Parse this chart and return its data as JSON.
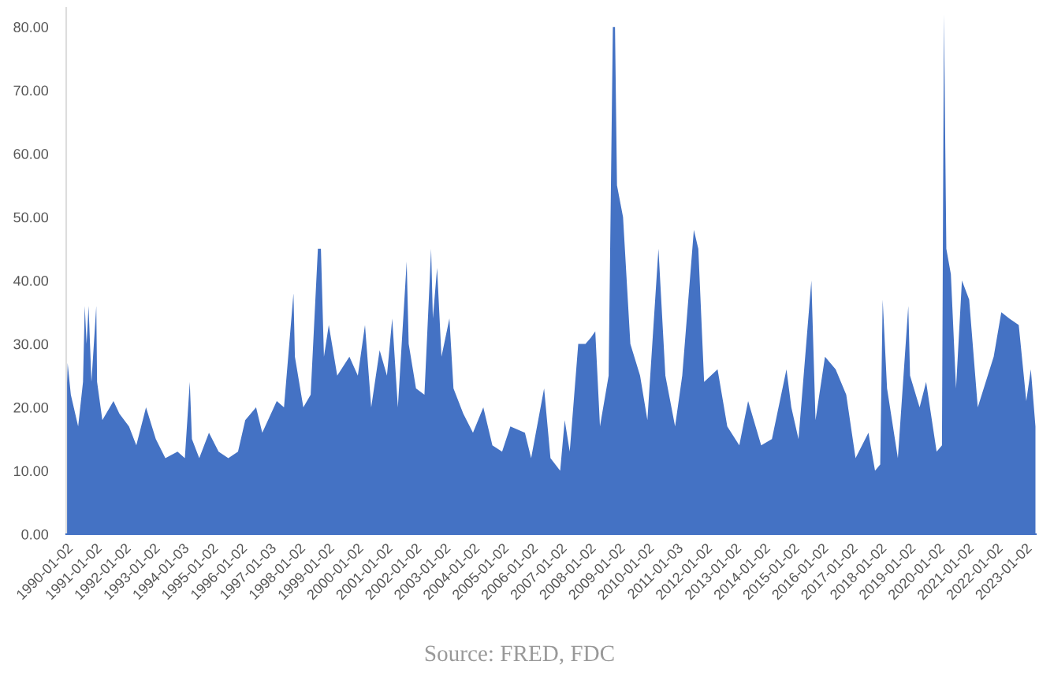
{
  "chart_data": {
    "type": "area",
    "annotations": [
      "Source: FRED, FDC"
    ],
    "x": [
      "1990-01-02",
      "1990-01-20",
      "1990-03-01",
      "1990-06-01",
      "1990-08-01",
      "1990-08-23",
      "1990-09-15",
      "1990-10-10",
      "1990-11-15",
      "1991-01-15",
      "1991-01-25",
      "1991-04-01",
      "1991-08-19",
      "1991-11-01",
      "1992-03-01",
      "1992-06-01",
      "1992-10-01",
      "1993-02-01",
      "1993-06-01",
      "1993-11-01",
      "1994-02-01",
      "1994-04-04",
      "1994-05-01",
      "1994-08-01",
      "1994-12-01",
      "1995-04-01",
      "1995-08-01",
      "1995-12-01",
      "1996-03-01",
      "1996-07-15",
      "1996-10-01",
      "1997-04-01",
      "1997-07-01",
      "1997-10-28",
      "1997-11-15",
      "1998-03-01",
      "1998-06-01",
      "1998-08-31",
      "1998-10-08",
      "1998-11-15",
      "1999-01-15",
      "1999-05-01",
      "1999-10-01",
      "2000-01-15",
      "2000-04-14",
      "2000-07-01",
      "2000-10-15",
      "2001-01-15",
      "2001-03-22",
      "2001-06-01",
      "2001-09-20",
      "2001-10-15",
      "2002-01-15",
      "2002-05-01",
      "2002-07-24",
      "2002-08-15",
      "2002-10-07",
      "2002-12-01",
      "2003-03-11",
      "2003-05-01",
      "2003-09-01",
      "2004-01-01",
      "2004-05-10",
      "2004-09-01",
      "2005-01-01",
      "2005-04-15",
      "2005-10-15",
      "2006-01-01",
      "2006-06-13",
      "2006-09-01",
      "2007-01-01",
      "2007-02-27",
      "2007-05-01",
      "2007-08-16",
      "2007-11-15",
      "2008-01-22",
      "2008-03-17",
      "2008-05-15",
      "2008-09-01",
      "2008-10-24",
      "2008-11-20",
      "2008-12-15",
      "2009-03-01",
      "2009-06-01",
      "2009-10-01",
      "2010-01-01",
      "2010-05-20",
      "2010-08-15",
      "2010-12-15",
      "2011-03-15",
      "2011-08-08",
      "2011-10-03",
      "2011-12-15",
      "2012-06-01",
      "2012-10-01",
      "2013-03-01",
      "2013-06-20",
      "2013-12-01",
      "2014-04-15",
      "2014-10-15",
      "2014-12-15",
      "2015-03-15",
      "2015-08-24",
      "2015-10-15",
      "2016-02-11",
      "2016-06-24",
      "2016-11-04",
      "2017-03-01",
      "2017-08-10",
      "2017-11-01",
      "2018-01-05",
      "2018-02-05",
      "2018-04-01",
      "2018-08-15",
      "2018-12-24",
      "2019-01-15",
      "2019-05-15",
      "2019-08-05",
      "2019-12-15",
      "2020-02-20",
      "2020-03-16",
      "2020-04-15",
      "2020-06-11",
      "2020-08-15",
      "2020-10-28",
      "2021-01-27",
      "2021-05-15",
      "2021-12-01",
      "2022-03-07",
      "2022-06-15",
      "2022-10-12",
      "2023-01-15",
      "2023-03-13",
      "2023-05-10"
    ],
    "values": [
      20,
      27,
      22,
      17,
      24,
      36,
      30,
      36,
      24,
      36,
      24,
      18,
      21,
      19,
      17,
      14,
      20,
      15,
      12,
      13,
      12,
      24,
      15,
      12,
      16,
      13,
      12,
      13,
      18,
      20,
      16,
      21,
      20,
      38,
      28,
      20,
      22,
      45,
      45,
      28,
      33,
      25,
      28,
      25,
      33,
      20,
      29,
      25,
      34,
      20,
      43,
      30,
      23,
      22,
      45,
      34,
      42,
      28,
      34,
      23,
      19,
      16,
      20,
      14,
      13,
      17,
      16,
      12,
      23,
      12,
      10,
      18,
      13,
      30,
      30,
      31,
      32,
      17,
      25,
      80,
      80,
      55,
      50,
      30,
      25,
      18,
      45,
      25,
      17,
      25,
      48,
      45,
      24,
      26,
      17,
      14,
      21,
      14,
      15,
      26,
      20,
      15,
      40,
      18,
      28,
      26,
      22,
      12,
      16,
      10,
      11,
      37,
      23,
      12,
      36,
      25,
      20,
      24,
      13,
      14,
      82,
      45,
      41,
      23,
      40,
      37,
      20,
      28,
      35,
      34,
      33,
      21,
      26,
      17
    ],
    "color": "#4472c4",
    "xlim": [
      "1990-01-02",
      "2023-05-15"
    ],
    "xticks": [
      "1990-01-02",
      "1991-01-02",
      "1992-01-02",
      "1993-01-02",
      "1994-01-03",
      "1995-01-02",
      "1996-01-02",
      "1997-01-03",
      "1998-01-02",
      "1999-01-02",
      "2000-01-02",
      "2001-01-02",
      "2002-01-02",
      "2003-01-02",
      "2004-01-02",
      "2005-01-02",
      "2006-01-02",
      "2007-01-02",
      "2008-01-02",
      "2009-01-02",
      "2010-01-02",
      "2011-01-03",
      "2012-01-02",
      "2013-01-02",
      "2014-01-02",
      "2015-01-02",
      "2016-01-02",
      "2017-01-02",
      "2018-01-02",
      "2019-01-02",
      "2020-01-02",
      "2021-01-02",
      "2022-01-02",
      "2023-01-02"
    ],
    "ylim": [
      0,
      83
    ],
    "yticks": [
      {
        "value": 0,
        "label": "0.00"
      },
      {
        "value": 10,
        "label": "10.00"
      },
      {
        "value": 20,
        "label": "20.00"
      },
      {
        "value": 30,
        "label": "30.00"
      },
      {
        "value": 40,
        "label": "40.00"
      },
      {
        "value": 50,
        "label": "50.00"
      },
      {
        "value": 60,
        "label": "60.00"
      },
      {
        "value": 70,
        "label": "70.00"
      },
      {
        "value": 80,
        "label": "80.00"
      }
    ]
  }
}
